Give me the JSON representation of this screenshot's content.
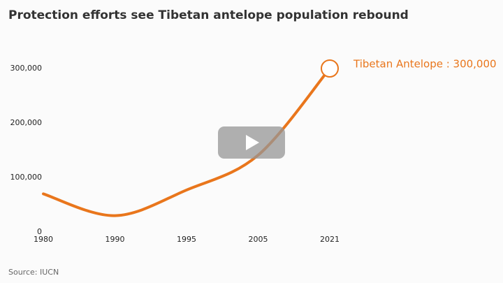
{
  "chart_data": {
    "type": "line",
    "title": "Protection efforts see Tibetan antelope population rebound",
    "categories": [
      "1980",
      "1990",
      "1995",
      "2005",
      "2021"
    ],
    "values": [
      70000,
      30000,
      77000,
      141000,
      300000
    ],
    "color": "#e9761c",
    "ylim": [
      0,
      300000
    ],
    "yticks": [
      0,
      {
        "value": 100000,
        "label": "100,000"
      },
      {
        "value": 200000,
        "label": "200,000"
      },
      {
        "value": 300000,
        "label": "300,000"
      }
    ],
    "annotation": "Tibetan Antelope : 300,000",
    "source": "Source: IUCN"
  }
}
